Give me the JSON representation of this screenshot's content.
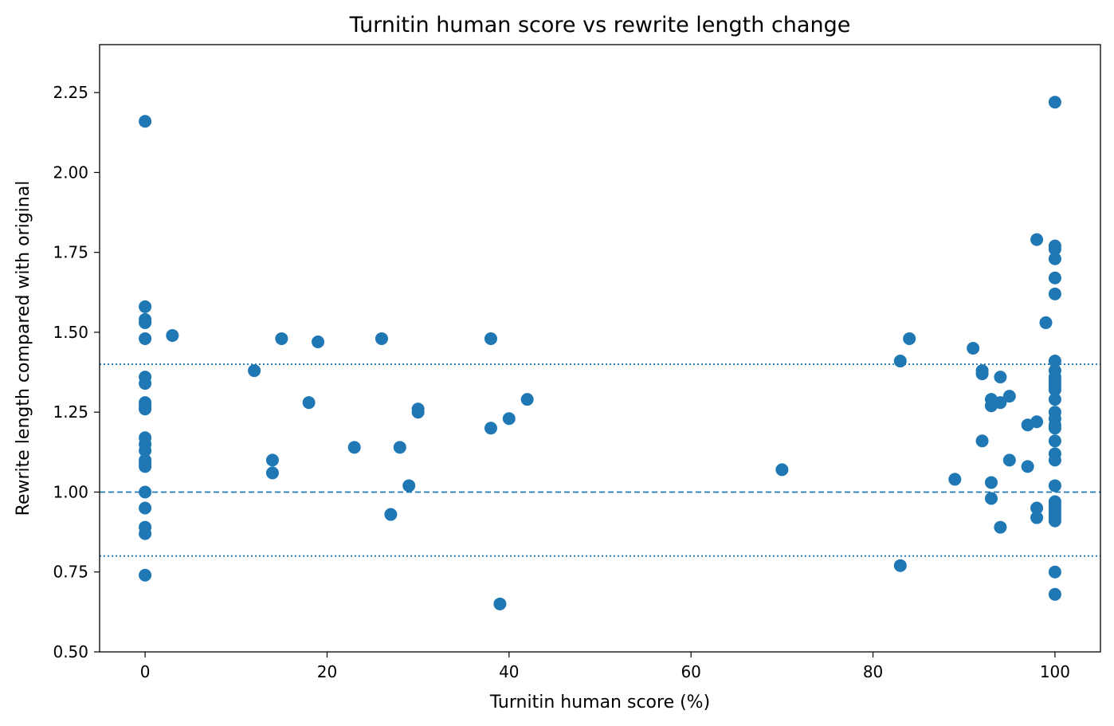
{
  "chart_data": {
    "type": "scatter",
    "title": "Turnitin human score vs rewrite length change",
    "xlabel": "Turnitin human score (%)",
    "ylabel": "Rewrite length compared with original",
    "xlim": [
      -5,
      105
    ],
    "ylim": [
      0.5,
      2.4
    ],
    "xticks": [
      0,
      20,
      40,
      60,
      80,
      100
    ],
    "yticks": [
      0.5,
      0.75,
      1.0,
      1.25,
      1.5,
      1.75,
      2.0,
      2.25
    ],
    "xtick_labels": [
      "0",
      "20",
      "40",
      "60",
      "80",
      "100"
    ],
    "ytick_labels": [
      "0.50",
      "0.75",
      "1.00",
      "1.25",
      "1.50",
      "1.75",
      "2.00",
      "2.25"
    ],
    "grid": false,
    "reference_lines": [
      {
        "y": 1.0,
        "style": "dashed",
        "color": "#1f77b4"
      },
      {
        "y": 1.4,
        "style": "dotted",
        "color": "#1f77b4"
      },
      {
        "y": 0.8,
        "style": "dotted",
        "color": "#1f77b4"
      }
    ],
    "marker_color": "#1f77b4",
    "x": [
      0,
      0,
      0,
      0,
      0,
      0,
      0,
      0,
      0,
      0,
      0,
      0,
      0,
      0,
      0,
      0,
      0,
      0,
      0,
      0,
      0,
      3,
      12,
      14,
      14,
      15,
      18,
      19,
      23,
      26,
      27,
      28,
      29,
      30,
      30,
      38,
      38,
      39,
      40,
      42,
      70,
      83,
      83,
      84,
      89,
      91,
      92,
      92,
      92,
      93,
      93,
      93,
      93,
      94,
      94,
      94,
      95,
      95,
      97,
      97,
      98,
      98,
      98,
      98,
      99,
      100,
      100,
      100,
      100,
      100,
      100,
      100,
      100,
      100,
      100,
      100,
      100,
      100,
      100,
      100,
      100,
      100,
      100,
      100,
      100,
      100,
      100,
      100,
      100,
      100,
      100,
      100,
      100,
      100,
      100,
      100
    ],
    "y": [
      2.16,
      1.58,
      1.54,
      1.53,
      1.48,
      1.36,
      1.34,
      1.28,
      1.27,
      1.26,
      1.17,
      1.15,
      1.13,
      1.1,
      1.09,
      1.0,
      0.95,
      0.89,
      0.87,
      0.74,
      1.08,
      1.49,
      1.38,
      1.1,
      1.06,
      1.48,
      1.28,
      1.47,
      1.14,
      1.48,
      0.93,
      1.14,
      1.02,
      1.26,
      1.25,
      1.48,
      1.2,
      0.65,
      1.23,
      1.29,
      1.07,
      1.41,
      0.77,
      1.48,
      1.04,
      1.45,
      1.38,
      1.37,
      1.16,
      1.29,
      1.27,
      1.03,
      0.98,
      1.36,
      1.28,
      0.89,
      1.3,
      1.1,
      1.21,
      1.08,
      1.79,
      1.22,
      0.95,
      0.92,
      1.53,
      2.22,
      1.77,
      1.76,
      1.73,
      1.67,
      1.62,
      1.41,
      1.38,
      1.36,
      1.34,
      1.32,
      1.29,
      1.25,
      1.23,
      1.21,
      1.2,
      1.16,
      1.12,
      1.1,
      1.02,
      0.97,
      0.96,
      0.95,
      0.94,
      0.93,
      0.92,
      0.91,
      0.75,
      0.68,
      1.35,
      1.33
    ]
  }
}
